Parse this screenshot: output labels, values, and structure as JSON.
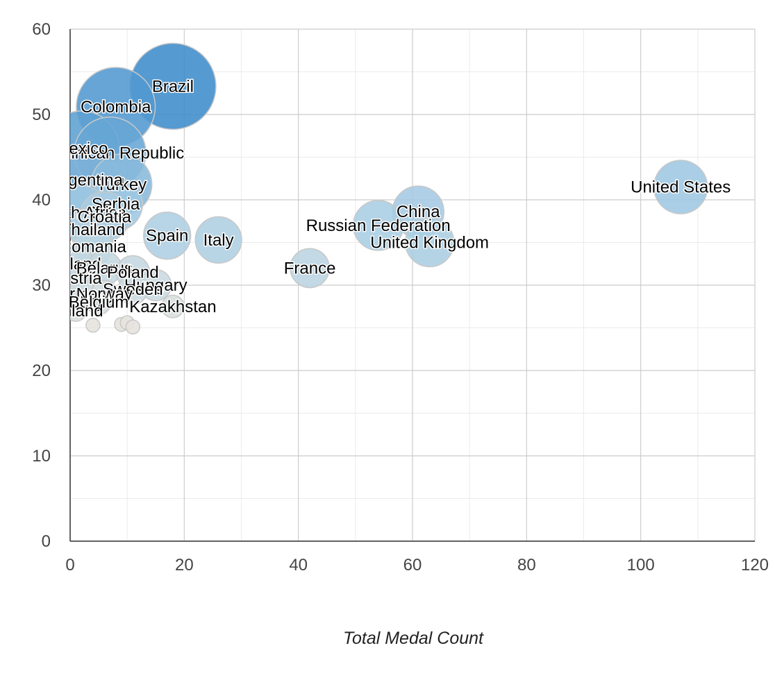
{
  "chart_data": {
    "type": "scatter",
    "subtype": "bubble",
    "xlabel": "Total Medal Count",
    "ylabel": "",
    "xlim": [
      0,
      120
    ],
    "ylim": [
      0,
      60
    ],
    "x_ticks": [
      0,
      20,
      40,
      60,
      80,
      100,
      120
    ],
    "y_ticks": [
      0,
      10,
      20,
      30,
      40,
      50,
      60
    ],
    "grid": true,
    "minor_grid": true,
    "legend": "none",
    "color_scale": {
      "low": "#e6e3dd",
      "mid": "#a8cde3",
      "high": "#3d8ccb"
    },
    "points": [
      {
        "label": "United States",
        "x": 107,
        "y": 41.5,
        "color_value": 0.55
      },
      {
        "label": "China",
        "x": 61,
        "y": 38.6,
        "color_value": 0.52
      },
      {
        "label": "Russian Federation",
        "x": 54,
        "y": 37.0,
        "color_value": 0.5
      },
      {
        "label": "United Kingdom",
        "x": 63,
        "y": 35.0,
        "color_value": 0.48
      },
      {
        "label": "France",
        "x": 42,
        "y": 32.0,
        "color_value": 0.35
      },
      {
        "label": "Italy",
        "x": 26,
        "y": 35.3,
        "color_value": 0.45
      },
      {
        "label": "Spain",
        "x": 17,
        "y": 35.8,
        "color_value": 0.46
      },
      {
        "label": "Brazil",
        "x": 18,
        "y": 53.3,
        "color_value": 1.0
      },
      {
        "label": "Colombia",
        "x": 8,
        "y": 50.9,
        "color_value": 0.9
      },
      {
        "label": "Dominican Republic",
        "x": 7,
        "y": 45.5,
        "color_value": 0.8
      },
      {
        "label": "Mexico",
        "x": 2,
        "y": 46.0,
        "color_value": 0.85
      },
      {
        "label": "Turkey",
        "x": 9,
        "y": 41.8,
        "color_value": 0.65
      },
      {
        "label": "Argentina",
        "x": 3,
        "y": 42.3,
        "color_value": 0.7
      },
      {
        "label": "Serbia",
        "x": 8,
        "y": 39.5,
        "color_value": 0.55
      },
      {
        "label": "South Africa",
        "x": 2,
        "y": 38.5,
        "color_value": 0.55
      },
      {
        "label": "Croatia",
        "x": 6,
        "y": 38.0,
        "color_value": 0.5
      },
      {
        "label": "Thailand",
        "x": 4,
        "y": 36.5,
        "color_value": 0.45
      },
      {
        "label": "Romania",
        "x": 4,
        "y": 34.5,
        "color_value": 0.35
      },
      {
        "label": "Ireland",
        "x": 1,
        "y": 32.5,
        "color_value": 0.3
      },
      {
        "label": "Belarus",
        "x": 6,
        "y": 32.0,
        "color_value": 0.28
      },
      {
        "label": "Austria",
        "x": 1,
        "y": 30.8,
        "color_value": 0.25
      },
      {
        "label": "Poland",
        "x": 11,
        "y": 31.5,
        "color_value": 0.27
      },
      {
        "label": "Hungary",
        "x": 15,
        "y": 30.0,
        "color_value": 0.24
      },
      {
        "label": "Sweden",
        "x": 11,
        "y": 29.5,
        "color_value": 0.22
      },
      {
        "label": "Germany",
        "x": 2,
        "y": 29.0,
        "color_value": 0.2
      },
      {
        "label": "Norway",
        "x": 6,
        "y": 29.0,
        "color_value": 0.18
      },
      {
        "label": "Belgium",
        "x": 5,
        "y": 28.0,
        "color_value": 0.15
      },
      {
        "label": "Kazakhstan",
        "x": 18,
        "y": 27.5,
        "color_value": 0.12
      },
      {
        "label": "Finland",
        "x": 1,
        "y": 27.0,
        "color_value": 0.1
      },
      {
        "label": "",
        "x": 4,
        "y": 25.3,
        "color_value": 0.0
      },
      {
        "label": "",
        "x": 9,
        "y": 25.4,
        "color_value": 0.0
      },
      {
        "label": "",
        "x": 10,
        "y": 25.6,
        "color_value": 0.0
      },
      {
        "label": "",
        "x": 11,
        "y": 25.1,
        "color_value": 0.0
      }
    ]
  }
}
